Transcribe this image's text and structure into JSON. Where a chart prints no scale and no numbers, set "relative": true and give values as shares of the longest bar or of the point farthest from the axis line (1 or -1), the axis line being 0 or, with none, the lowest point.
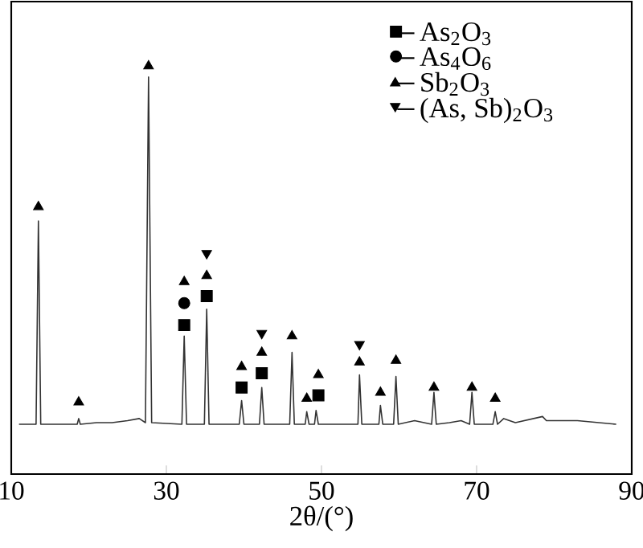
{
  "chart_data": {
    "type": "line",
    "xlabel": "2θ/(°)",
    "relative": true,
    "xlim": [
      10,
      90
    ],
    "xticks": [
      10,
      30,
      50,
      70,
      90
    ],
    "tick_labels": "x",
    "legend": "top right",
    "grid": false,
    "series": [
      {
        "color": "#333333",
        "marker": "none",
        "x": [
          11,
          13.2,
          13.5,
          13.8,
          18.5,
          18.7,
          18.9,
          21,
          23,
          25,
          26.5,
          27.3,
          27.7,
          28.1,
          32.0,
          32.3,
          32.6,
          34.9,
          35.2,
          35.5,
          39.4,
          39.7,
          40.0,
          42.0,
          42.3,
          42.6,
          45.9,
          46.2,
          46.5,
          47.9,
          48.1,
          48.4,
          49.1,
          49.3,
          49.6,
          54.7,
          54.9,
          55.2,
          57.4,
          57.6,
          57.9,
          59.3,
          59.6,
          59.9,
          62,
          64.2,
          64.5,
          64.8,
          66.5,
          68,
          69.1,
          69.4,
          69.7,
          72.1,
          72.4,
          72.7,
          73.5,
          75,
          78.5,
          79,
          83,
          88
        ],
        "values": [
          0.122,
          0.122,
          0.62,
          0.122,
          0.122,
          0.136,
          0.122,
          0.126,
          0.126,
          0.131,
          0.136,
          0.126,
          0.973,
          0.126,
          0.122,
          0.338,
          0.122,
          0.122,
          0.404,
          0.122,
          0.122,
          0.18,
          0.122,
          0.122,
          0.212,
          0.122,
          0.122,
          0.298,
          0.122,
          0.122,
          0.153,
          0.122,
          0.122,
          0.156,
          0.122,
          0.122,
          0.243,
          0.122,
          0.122,
          0.168,
          0.122,
          0.122,
          0.239,
          0.122,
          0.131,
          0.122,
          0.2,
          0.122,
          0.126,
          0.131,
          0.122,
          0.2,
          0.122,
          0.122,
          0.153,
          0.122,
          0.136,
          0.126,
          0.141,
          0.131,
          0.131,
          0.122
        ]
      },
      {
        "type": "scatter",
        "name": "As$_{2}$O$_{3}$",
        "color": "#000000",
        "marker": "square",
        "x": [
          32.3,
          35.2,
          39.7,
          42.3,
          49.6
        ],
        "values": [
          0.365,
          0.436,
          0.212,
          0.247,
          0.193
        ]
      },
      {
        "type": "scatter",
        "name": "As$_{4}$O$_{6}$",
        "color": "#000000",
        "marker": "circle",
        "x": [
          32.3
        ],
        "values": [
          0.419
        ]
      },
      {
        "type": "scatter",
        "name": "Sb$_{2}$O$_{3}$",
        "color": "#000000",
        "marker": "triangle",
        "x": [
          13.5,
          18.7,
          27.7,
          32.3,
          35.2,
          39.7,
          42.3,
          46.2,
          48.1,
          49.6,
          54.9,
          57.6,
          59.6,
          64.5,
          69.4,
          72.4
        ],
        "values": [
          0.655,
          0.176,
          1,
          0.471,
          0.486,
          0.263,
          0.298,
          0.338,
          0.185,
          0.243,
          0.274,
          0.2,
          0.278,
          0.212,
          0.212,
          0.185
        ]
      },
      {
        "type": "scatter",
        "name": "(As, Sb)$_{2}$O$_{3}$",
        "color": "#000000",
        "marker": "triangle-down",
        "x": [
          35.2,
          42.3,
          54.9
        ],
        "values": [
          0.541,
          0.345,
          0.318
        ]
      }
    ]
  }
}
